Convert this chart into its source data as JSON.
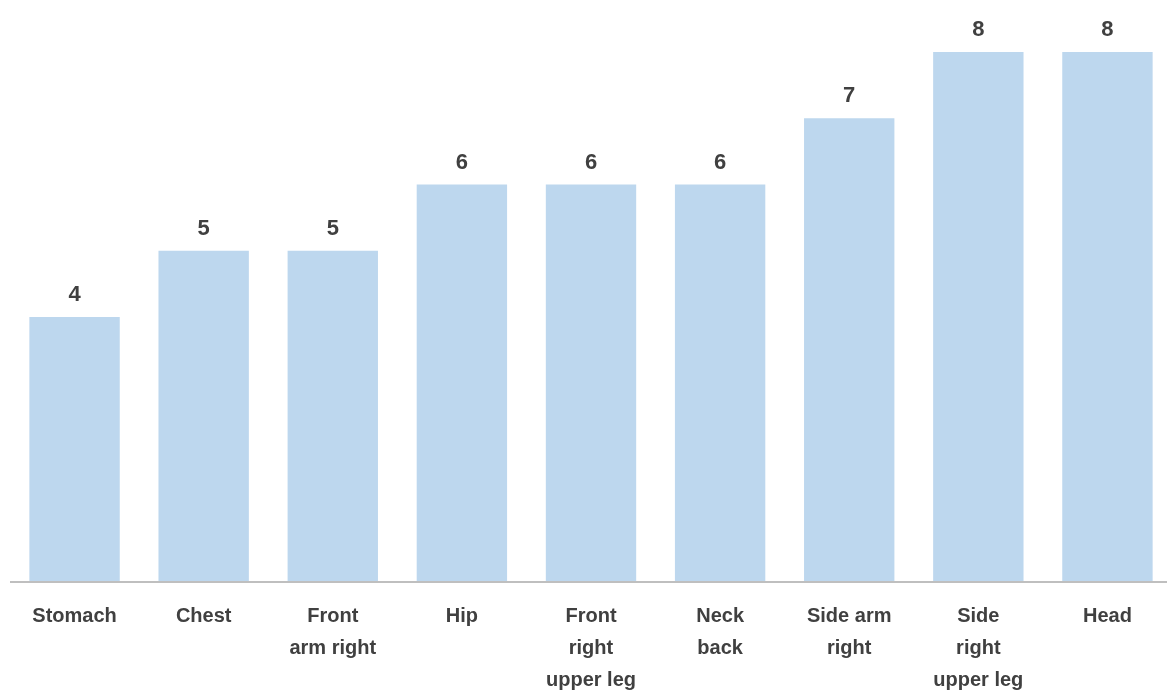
{
  "chart_data": {
    "type": "bar",
    "categories": [
      "Stomach",
      "Chest",
      "Front arm right",
      "Hip",
      "Front right upper leg",
      "Neck back",
      "Side arm right",
      "Side right upper leg",
      "Head"
    ],
    "values": [
      4,
      5,
      5,
      6,
      6,
      6,
      7,
      8,
      8
    ],
    "color": "#bdd7ee",
    "ylim": [
      0,
      8
    ],
    "tick_labels": "x",
    "data_labels": true
  }
}
